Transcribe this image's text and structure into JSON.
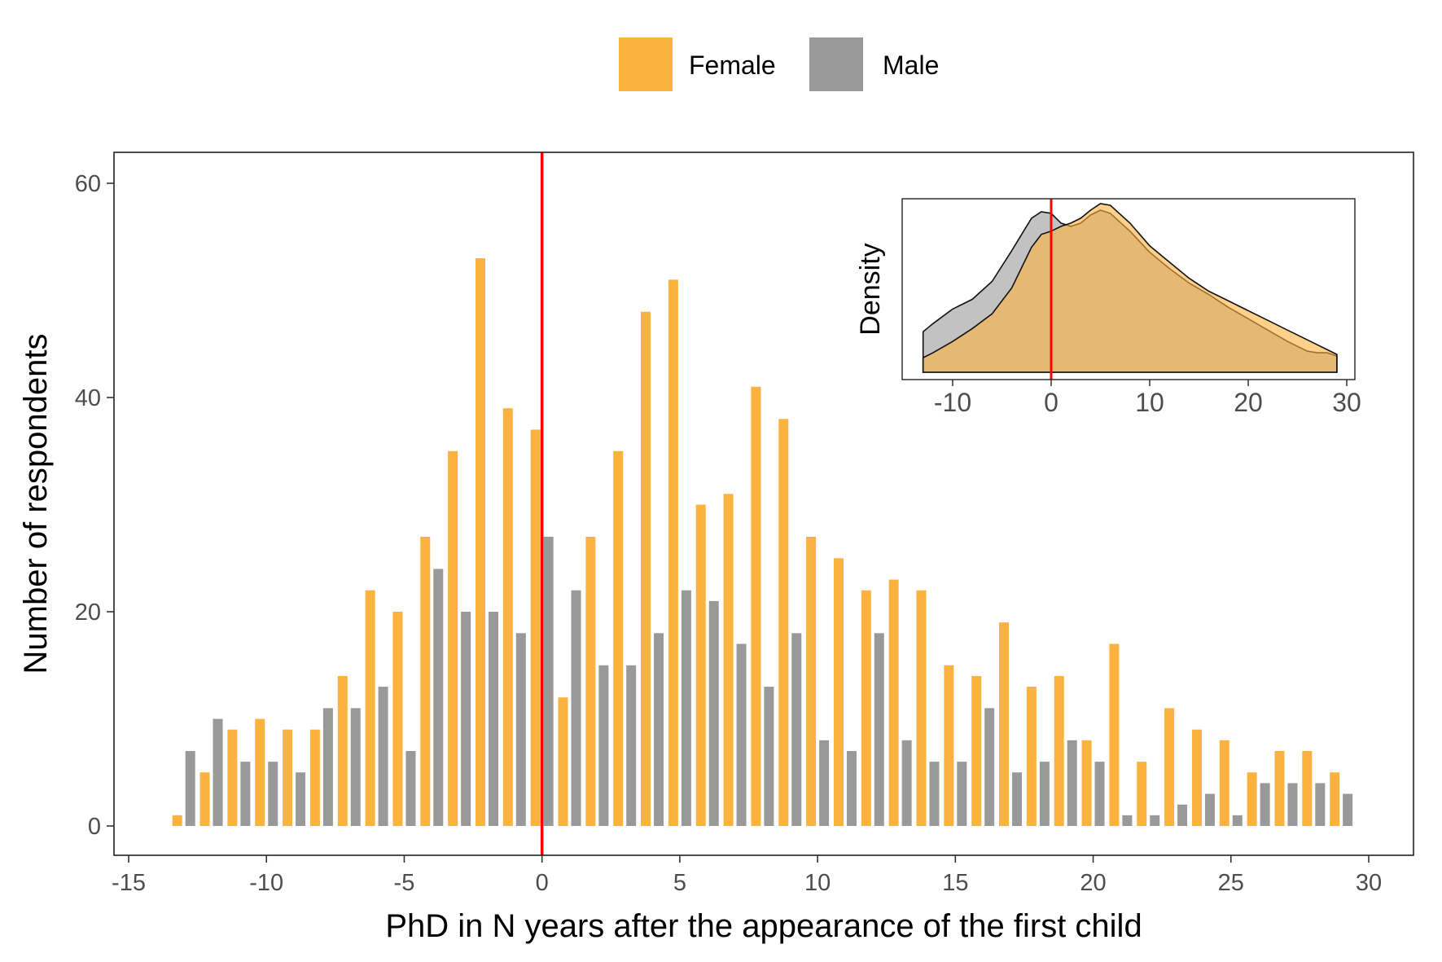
{
  "legend": {
    "items": [
      {
        "label": "Female",
        "color": "#FBB23F"
      },
      {
        "label": "Male",
        "color": "#999999"
      }
    ]
  },
  "chart_data": [
    {
      "type": "bar",
      "xlabel": "PhD in N years after the appearance of the first child",
      "ylabel": "Number of respondents",
      "xlim": [
        -15,
        30
      ],
      "ylim": [
        0,
        60
      ],
      "xticks": [
        "-15",
        "-10",
        "-5",
        "0",
        "5",
        "10",
        "15",
        "20",
        "25",
        "30"
      ],
      "yticks": [
        "0",
        "20",
        "40",
        "60"
      ],
      "grid": false,
      "legend_position": "top",
      "reference_line": {
        "x": 0,
        "color": "#FF0000"
      },
      "x": [
        -13,
        -12,
        -11,
        -10,
        -9,
        -8,
        -7,
        -6,
        -5,
        -4,
        -3,
        -2,
        -1,
        0,
        1,
        2,
        3,
        4,
        5,
        6,
        7,
        8,
        9,
        10,
        11,
        12,
        13,
        14,
        15,
        16,
        17,
        18,
        19,
        20,
        21,
        22,
        23,
        24,
        25,
        26,
        27,
        28,
        29
      ],
      "series": [
        {
          "name": "Female",
          "color": "#FBB23F",
          "values": [
            1,
            5,
            9,
            10,
            9,
            9,
            14,
            22,
            20,
            27,
            35,
            53,
            39,
            37,
            12,
            27,
            35,
            48,
            51,
            30,
            31,
            41,
            38,
            27,
            25,
            22,
            23,
            22,
            15,
            14,
            19,
            13,
            14,
            8,
            17,
            6,
            11,
            9,
            8,
            5,
            7,
            7,
            5
          ]
        },
        {
          "name": "Male",
          "color": "#999999",
          "values": [
            7,
            10,
            6,
            6,
            5,
            11,
            11,
            13,
            7,
            24,
            20,
            20,
            18,
            27,
            22,
            15,
            15,
            18,
            22,
            21,
            17,
            13,
            18,
            8,
            7,
            18,
            8,
            6,
            6,
            11,
            5,
            6,
            8,
            6,
            1,
            1,
            2,
            3,
            1,
            4,
            4,
            4,
            3
          ]
        }
      ]
    },
    {
      "type": "area",
      "ylabel": "Density",
      "xlim": [
        -13,
        29
      ],
      "xticks": [
        "-10",
        "0",
        "10",
        "20",
        "30"
      ],
      "reference_line": {
        "x": 0,
        "color": "#FF0000"
      },
      "x": [
        -13,
        -12,
        -10,
        -8,
        -6,
        -4,
        -2,
        -1,
        0,
        1,
        2,
        3,
        4,
        5,
        6,
        8,
        10,
        12,
        14,
        16,
        18,
        20,
        22,
        24,
        26,
        27,
        28,
        29
      ],
      "series": [
        {
          "name": "Female",
          "color": "#FBB23F",
          "opacity": 0.6,
          "values": [
            0.09,
            0.12,
            0.19,
            0.27,
            0.36,
            0.52,
            0.77,
            0.85,
            0.87,
            0.9,
            0.92,
            0.95,
            1.0,
            1.04,
            1.03,
            0.92,
            0.78,
            0.68,
            0.58,
            0.5,
            0.44,
            0.38,
            0.32,
            0.26,
            0.2,
            0.17,
            0.14,
            0.11
          ]
        },
        {
          "name": "Male",
          "color": "#999999",
          "opacity": 0.6,
          "values": [
            0.25,
            0.3,
            0.39,
            0.45,
            0.56,
            0.75,
            0.95,
            0.99,
            0.98,
            0.92,
            0.9,
            0.92,
            0.97,
            1.0,
            0.98,
            0.87,
            0.74,
            0.64,
            0.55,
            0.48,
            0.4,
            0.33,
            0.26,
            0.19,
            0.13,
            0.12,
            0.12,
            0.1
          ]
        }
      ]
    }
  ]
}
